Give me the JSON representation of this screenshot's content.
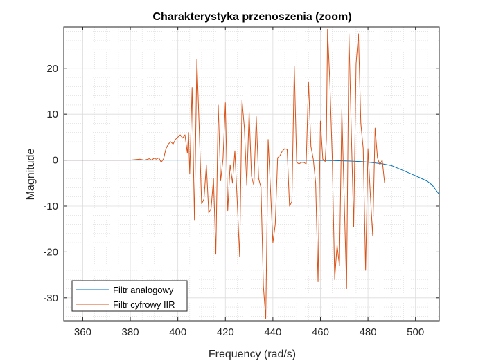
{
  "chart_data": {
    "type": "line",
    "title": "Charakterystyka przenoszenia (zoom)",
    "xlabel": "Frequency (rad/s)",
    "ylabel": "Magnitude",
    "xlim": [
      352,
      510
    ],
    "ylim": [
      -35,
      29
    ],
    "xticks": [
      360,
      380,
      400,
      420,
      440,
      460,
      480,
      500
    ],
    "yticks": [
      -30,
      -20,
      -10,
      0,
      10,
      20
    ],
    "grid": true,
    "legend_position": "bottom-left",
    "series": [
      {
        "name": "Filtr analogowy",
        "color": "#0072BD",
        "points": [
          [
            352,
            0
          ],
          [
            380,
            0
          ],
          [
            400,
            0
          ],
          [
            420,
            0
          ],
          [
            440,
            0
          ],
          [
            455,
            -0.05
          ],
          [
            465,
            -0.1
          ],
          [
            472,
            -0.2
          ],
          [
            478,
            -0.35
          ],
          [
            482,
            -0.55
          ],
          [
            486,
            -0.8
          ],
          [
            490,
            -1.2
          ],
          [
            495,
            -2.3
          ],
          [
            500,
            -3.4
          ],
          [
            505,
            -4.6
          ],
          [
            507,
            -5.4
          ],
          [
            510,
            -7.5
          ]
        ]
      },
      {
        "name": "Filtr cyfrowy IIR",
        "color": "#D95319",
        "points": [
          [
            352,
            0
          ],
          [
            380,
            0
          ],
          [
            384,
            0.2
          ],
          [
            386,
            0
          ],
          [
            388,
            0.3
          ],
          [
            389,
            0
          ],
          [
            390,
            0.4
          ],
          [
            391,
            0.2
          ],
          [
            392,
            0.5
          ],
          [
            393,
            -0.5
          ],
          [
            394,
            0.3
          ],
          [
            395,
            2.5
          ],
          [
            396,
            3.5
          ],
          [
            397,
            4
          ],
          [
            398,
            3.5
          ],
          [
            399,
            4.5
          ],
          [
            400,
            5
          ],
          [
            401,
            5.5
          ],
          [
            402,
            4.8
          ],
          [
            403,
            5.5
          ],
          [
            404,
            1.5
          ],
          [
            404.5,
            6
          ],
          [
            405,
            -3
          ],
          [
            406,
            15.8
          ],
          [
            407,
            -13
          ],
          [
            408,
            22
          ],
          [
            409,
            7
          ],
          [
            410,
            -9.5
          ],
          [
            411,
            -8.5
          ],
          [
            412,
            -1
          ],
          [
            413,
            -11.5
          ],
          [
            414,
            -10.5
          ],
          [
            415,
            -4
          ],
          [
            416,
            -20.5
          ],
          [
            417,
            12
          ],
          [
            418,
            -4.5
          ],
          [
            419,
            0.2
          ],
          [
            420,
            12.5
          ],
          [
            421,
            -11
          ],
          [
            422,
            -1
          ],
          [
            423,
            -5
          ],
          [
            424,
            2
          ],
          [
            425,
            -9
          ],
          [
            426,
            -21
          ],
          [
            427,
            13
          ],
          [
            428,
            7
          ],
          [
            429,
            -5.5
          ],
          [
            430,
            10.5
          ],
          [
            431,
            -3.5
          ],
          [
            432,
            -5.5
          ],
          [
            433,
            9.5
          ],
          [
            434,
            -4
          ],
          [
            435,
            -6
          ],
          [
            436,
            -27.5
          ],
          [
            437,
            -34.5
          ],
          [
            438,
            4.5
          ],
          [
            439,
            -6.5
          ],
          [
            440,
            -18
          ],
          [
            441,
            -14
          ],
          [
            442,
            0.5
          ],
          [
            443,
            1
          ],
          [
            444,
            2
          ],
          [
            445,
            2.5
          ],
          [
            446,
            2.3
          ],
          [
            447,
            -10
          ],
          [
            448,
            -9
          ],
          [
            449,
            20.5
          ],
          [
            450,
            -0.5
          ],
          [
            451,
            -0.8
          ],
          [
            452,
            -0.5
          ],
          [
            453,
            -0.5
          ],
          [
            454,
            -0.8
          ],
          [
            455,
            17
          ],
          [
            456,
            3
          ],
          [
            457,
            0.2
          ],
          [
            458,
            -5
          ],
          [
            459,
            -26.5
          ],
          [
            460,
            8.5
          ],
          [
            461,
            0.2
          ],
          [
            462,
            -0.3
          ],
          [
            462.5,
            4.5
          ],
          [
            463,
            28.5
          ],
          [
            464,
            16.5
          ],
          [
            465,
            0.2
          ],
          [
            466,
            -26
          ],
          [
            467,
            -18.5
          ],
          [
            468,
            -23
          ],
          [
            469,
            11
          ],
          [
            470,
            -8.5
          ],
          [
            471,
            -28
          ],
          [
            472,
            27.5
          ],
          [
            473,
            6
          ],
          [
            474,
            -14.5
          ],
          [
            475,
            21
          ],
          [
            476,
            27.5
          ],
          [
            477,
            8
          ],
          [
            478,
            2.5
          ],
          [
            479,
            -24
          ],
          [
            480,
            2.5
          ],
          [
            481,
            -7.5
          ],
          [
            482,
            -16.5
          ],
          [
            483,
            7
          ],
          [
            484,
            0.5
          ],
          [
            485,
            -1
          ],
          [
            486,
            0
          ],
          [
            487,
            -5
          ]
        ]
      }
    ]
  }
}
